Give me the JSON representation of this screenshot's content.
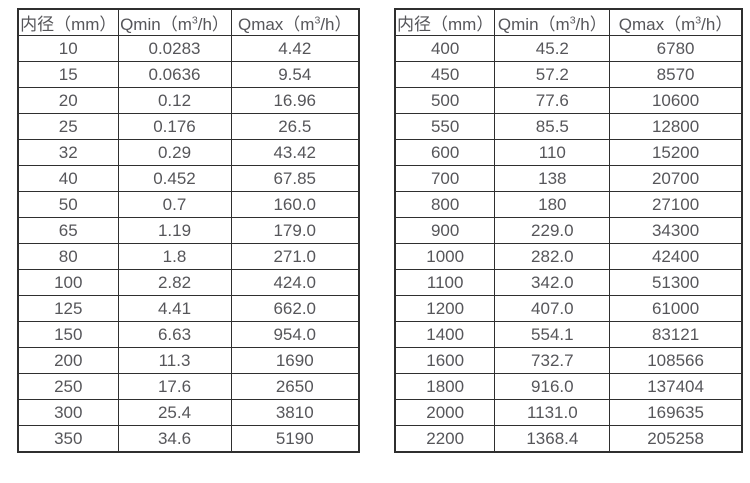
{
  "page": {
    "background_color": "#ffffff",
    "text_color": "#56565a",
    "border_color": "#2f2f2f"
  },
  "tables": [
    {
      "name": "flow-spec-table-small-diameters",
      "headers": [
        "内径（mm）",
        "Qmin（m³/h）",
        "Qmax（m³/h）"
      ],
      "rows": [
        [
          "10",
          "0.0283",
          "4.42"
        ],
        [
          "15",
          "0.0636",
          "9.54"
        ],
        [
          "20",
          "0.12",
          "16.96"
        ],
        [
          "25",
          "0.176",
          "26.5"
        ],
        [
          "32",
          "0.29",
          "43.42"
        ],
        [
          "40",
          "0.452",
          "67.85"
        ],
        [
          "50",
          "0.7",
          "160.0"
        ],
        [
          "65",
          "1.19",
          "179.0"
        ],
        [
          "80",
          "1.8",
          "271.0"
        ],
        [
          "100",
          "2.82",
          "424.0"
        ],
        [
          "125",
          "4.41",
          "662.0"
        ],
        [
          "150",
          "6.63",
          "954.0"
        ],
        [
          "200",
          "11.3",
          "1690"
        ],
        [
          "250",
          "17.6",
          "2650"
        ],
        [
          "300",
          "25.4",
          "3810"
        ],
        [
          "350",
          "34.6",
          "5190"
        ]
      ]
    },
    {
      "name": "flow-spec-table-large-diameters",
      "headers": [
        "内径（mm）",
        "Qmin（m³/h）",
        "Qmax（m³/h）"
      ],
      "rows": [
        [
          "400",
          "45.2",
          "6780"
        ],
        [
          "450",
          "57.2",
          "8570"
        ],
        [
          "500",
          "77.6",
          "10600"
        ],
        [
          "550",
          "85.5",
          "12800"
        ],
        [
          "600",
          "110",
          "15200"
        ],
        [
          "700",
          "138",
          "20700"
        ],
        [
          "800",
          "180",
          "27100"
        ],
        [
          "900",
          "229.0",
          "34300"
        ],
        [
          "1000",
          "282.0",
          "42400"
        ],
        [
          "1100",
          "342.0",
          "51300"
        ],
        [
          "1200",
          "407.0",
          "61000"
        ],
        [
          "1400",
          "554.1",
          "83121"
        ],
        [
          "1600",
          "732.7",
          "108566"
        ],
        [
          "1800",
          "916.0",
          "137404"
        ],
        [
          "2000",
          "1131.0",
          "169635"
        ],
        [
          "2200",
          "1368.4",
          "205258"
        ]
      ]
    }
  ],
  "cell_names": [
    "diameter-cell",
    "qmin-cell",
    "qmax-cell"
  ]
}
